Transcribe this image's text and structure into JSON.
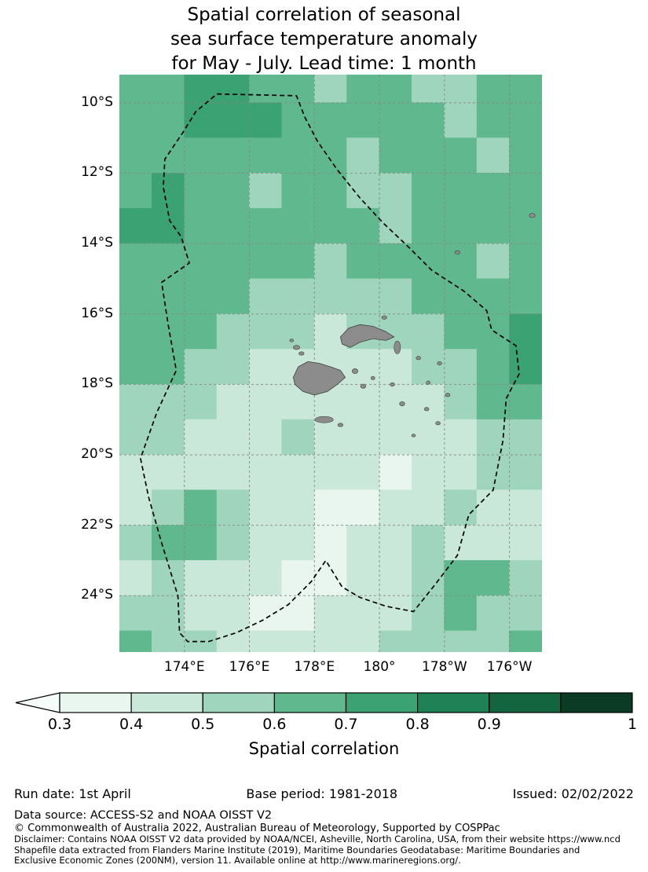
{
  "title": {
    "line1": "Spatial correlation of seasonal",
    "line2": "sea surface temperature anomaly",
    "line3": "for May - July. Lead time: 1 month"
  },
  "footer": {
    "run_date": "Run date: 1st April",
    "base_period": "Base period: 1981-2018",
    "issued": "Issued: 02/02/2022",
    "data_source": "Data source: ACCESS-S2 and NOAA OISST V2",
    "copyright": "© Commonwealth of Australia 2022, Australian Bureau of Meteorology, Supported by COSPPac",
    "disclaimer": [
      "Disclaimer: Contains NOAA OISST V2 data provided by NOAA/NCEI, Asheville, North Carolina, USA, from their website https://www.ncd",
      "Shapefile data extracted from Flanders Marine Institute (2019), Maritime Boundaries Geodatabase: Maritime Boundaries and",
      "Exclusive Economic Zones (200NM), version 11. Available online at http://www.marineregions.org/."
    ]
  },
  "chart_data": {
    "type": "heatmap",
    "title": "Spatial correlation of seasonal sea surface temperature anomaly for May - July. Lead time: 1 month",
    "season": "May - July",
    "lead_time": "1 month",
    "colorbar_label": "Spatial correlation",
    "levels": [
      0.3,
      0.4,
      0.5,
      0.6,
      0.7,
      0.8,
      0.9,
      0.95,
      1.0
    ],
    "below_color": "#f6fcf9",
    "colors": [
      "#e8f6ef",
      "#c9e8d9",
      "#a0d5bd",
      "#5fb88e",
      "#3aa273",
      "#1f8257",
      "#12653f",
      "#0b3b25"
    ],
    "colorbar": {
      "ticks": [
        {
          "pos": 0,
          "label": "0.3"
        },
        {
          "pos": 1,
          "label": "0.4"
        },
        {
          "pos": 2,
          "label": "0.5"
        },
        {
          "pos": 3,
          "label": "0.6"
        },
        {
          "pos": 4,
          "label": "0.7"
        },
        {
          "pos": 5,
          "label": "0.8"
        },
        {
          "pos": 6,
          "label": "0.9"
        },
        {
          "pos": 8,
          "label": "1"
        }
      ]
    },
    "map_extent": {
      "lon_min": 172,
      "lon_max": 185,
      "lat_min": -25.6,
      "lat_max": -9.2
    },
    "axis": {
      "x_ticks": [
        {
          "lon": 174,
          "label": "174°E"
        },
        {
          "lon": 176,
          "label": "176°E"
        },
        {
          "lon": 178,
          "label": "178°E"
        },
        {
          "lon": 180,
          "label": "180°"
        },
        {
          "lon": 182,
          "label": "178°W"
        },
        {
          "lon": 184,
          "label": "176°W"
        }
      ],
      "y_ticks": [
        {
          "lat": -10,
          "label": "10°S"
        },
        {
          "lat": -12,
          "label": "12°S"
        },
        {
          "lat": -14,
          "label": "14°S"
        },
        {
          "lat": -16,
          "label": "16°S"
        },
        {
          "lat": -18,
          "label": "18°S"
        },
        {
          "lat": -20,
          "label": "20°S"
        },
        {
          "lat": -22,
          "label": "22°S"
        },
        {
          "lat": -24,
          "label": "24°S"
        }
      ]
    },
    "grid": {
      "lon_start": 172,
      "dlon": 1,
      "lat_start": -9,
      "dlat": -1,
      "values": [
        [
          0.65,
          0.65,
          0.75,
          0.75,
          0.65,
          0.65,
          0.55,
          0.65,
          0.65,
          0.55,
          0.55,
          0.65,
          0.65
        ],
        [
          0.65,
          0.65,
          0.75,
          0.75,
          0.75,
          0.65,
          0.65,
          0.65,
          0.65,
          0.65,
          0.55,
          0.65,
          0.65
        ],
        [
          0.65,
          0.65,
          0.65,
          0.65,
          0.65,
          0.65,
          0.65,
          0.55,
          0.65,
          0.65,
          0.65,
          0.55,
          0.65
        ],
        [
          0.65,
          0.75,
          0.65,
          0.65,
          0.55,
          0.65,
          0.65,
          0.55,
          0.55,
          0.65,
          0.65,
          0.65,
          0.65
        ],
        [
          0.75,
          0.75,
          0.65,
          0.65,
          0.65,
          0.65,
          0.65,
          0.65,
          0.55,
          0.65,
          0.65,
          0.65,
          0.65
        ],
        [
          0.65,
          0.65,
          0.65,
          0.65,
          0.65,
          0.65,
          0.55,
          0.65,
          0.65,
          0.65,
          0.65,
          0.55,
          0.65
        ],
        [
          0.65,
          0.65,
          0.65,
          0.65,
          0.55,
          0.55,
          0.55,
          0.55,
          0.55,
          0.65,
          0.65,
          0.65,
          0.65
        ],
        [
          0.65,
          0.65,
          0.65,
          0.55,
          0.55,
          0.55,
          0.45,
          0.55,
          0.55,
          0.55,
          0.65,
          0.65,
          0.72
        ],
        [
          0.65,
          0.65,
          0.55,
          0.55,
          0.45,
          0.45,
          0.45,
          0.45,
          0.45,
          0.55,
          0.55,
          0.65,
          0.72
        ],
        [
          0.55,
          0.55,
          0.55,
          0.45,
          0.45,
          0.45,
          0.45,
          0.45,
          0.45,
          0.45,
          0.55,
          0.65,
          0.65
        ],
        [
          0.55,
          0.55,
          0.45,
          0.45,
          0.45,
          0.55,
          0.45,
          0.45,
          0.45,
          0.45,
          0.45,
          0.55,
          0.55
        ],
        [
          0.45,
          0.45,
          0.45,
          0.45,
          0.45,
          0.45,
          0.45,
          0.45,
          0.35,
          0.45,
          0.45,
          0.55,
          0.55
        ],
        [
          0.45,
          0.55,
          0.65,
          0.55,
          0.45,
          0.45,
          0.35,
          0.35,
          0.45,
          0.45,
          0.55,
          0.45,
          0.45
        ],
        [
          0.55,
          0.65,
          0.65,
          0.55,
          0.45,
          0.45,
          0.35,
          0.45,
          0.45,
          0.55,
          0.45,
          0.45,
          0.45
        ],
        [
          0.45,
          0.55,
          0.45,
          0.45,
          0.45,
          0.35,
          0.35,
          0.45,
          0.45,
          0.55,
          0.65,
          0.65,
          0.55
        ],
        [
          0.55,
          0.55,
          0.45,
          0.45,
          0.35,
          0.35,
          0.45,
          0.45,
          0.45,
          0.55,
          0.65,
          0.55,
          0.55
        ],
        [
          0.65,
          0.55,
          0.55,
          0.45,
          0.45,
          0.45,
          0.45,
          0.45,
          0.55,
          0.55,
          0.55,
          0.55,
          0.65
        ]
      ]
    },
    "eez_boundary": [
      [
        175.0,
        -9.75
      ],
      [
        177.45,
        -9.8
      ],
      [
        177.7,
        -10.4
      ],
      [
        178.1,
        -11.1
      ],
      [
        178.7,
        -11.9
      ],
      [
        179.4,
        -12.7
      ],
      [
        180.1,
        -13.4
      ],
      [
        180.9,
        -14.1
      ],
      [
        181.6,
        -14.75
      ],
      [
        182.6,
        -15.35
      ],
      [
        183.3,
        -15.9
      ],
      [
        183.45,
        -16.45
      ],
      [
        184.2,
        -16.9
      ],
      [
        184.3,
        -17.7
      ],
      [
        183.9,
        -18.4
      ],
      [
        183.8,
        -19.6
      ],
      [
        183.5,
        -21.0
      ],
      [
        182.75,
        -21.7
      ],
      [
        182.4,
        -22.85
      ],
      [
        181.7,
        -23.7
      ],
      [
        181.05,
        -24.45
      ],
      [
        180.2,
        -24.3
      ],
      [
        179.4,
        -24.05
      ],
      [
        178.85,
        -23.75
      ],
      [
        178.35,
        -23.0
      ],
      [
        177.9,
        -23.6
      ],
      [
        177.2,
        -24.25
      ],
      [
        176.4,
        -24.7
      ],
      [
        175.6,
        -25.05
      ],
      [
        174.75,
        -25.3
      ],
      [
        174.1,
        -25.3
      ],
      [
        173.85,
        -25.05
      ],
      [
        173.8,
        -24.0
      ],
      [
        173.3,
        -22.5
      ],
      [
        172.9,
        -21.2
      ],
      [
        172.65,
        -20.1
      ],
      [
        173.15,
        -18.8
      ],
      [
        173.75,
        -17.6
      ],
      [
        173.5,
        -16.3
      ],
      [
        173.3,
        -15.1
      ],
      [
        174.15,
        -14.55
      ],
      [
        173.9,
        -13.8
      ],
      [
        173.55,
        -13.35
      ],
      [
        173.35,
        -12.4
      ],
      [
        173.4,
        -11.6
      ],
      [
        173.95,
        -10.85
      ],
      [
        174.35,
        -10.25
      ],
      [
        175.0,
        -9.75
      ]
    ],
    "islands": {
      "fill": "#8c8c8c",
      "stroke": "#3f3f3f",
      "viti_levu": [
        [
          177.35,
          -17.8
        ],
        [
          177.5,
          -17.5
        ],
        [
          177.8,
          -17.35
        ],
        [
          178.15,
          -17.4
        ],
        [
          178.5,
          -17.5
        ],
        [
          178.8,
          -17.6
        ],
        [
          178.95,
          -17.8
        ],
        [
          178.7,
          -18.0
        ],
        [
          178.4,
          -18.2
        ],
        [
          178.0,
          -18.3
        ],
        [
          177.65,
          -18.2
        ],
        [
          177.4,
          -18.0
        ]
      ],
      "vanua_levu": [
        [
          178.8,
          -16.65
        ],
        [
          179.05,
          -16.4
        ],
        [
          179.4,
          -16.3
        ],
        [
          179.8,
          -16.35
        ],
        [
          180.2,
          -16.5
        ],
        [
          180.45,
          -16.65
        ],
        [
          180.2,
          -16.75
        ],
        [
          179.8,
          -16.7
        ],
        [
          179.4,
          -16.8
        ],
        [
          179.1,
          -16.95
        ],
        [
          178.85,
          -16.85
        ]
      ],
      "specks": [
        [
          180.55,
          -16.95,
          0.1,
          0.18
        ],
        [
          177.45,
          -16.95,
          0.1,
          0.06
        ],
        [
          177.6,
          -17.12,
          0.08,
          0.05
        ],
        [
          177.3,
          -16.75,
          0.06,
          0.04
        ],
        [
          179.25,
          -17.62,
          0.09,
          0.07
        ],
        [
          179.5,
          -18.05,
          0.08,
          0.06
        ],
        [
          179.8,
          -17.82,
          0.06,
          0.05
        ],
        [
          178.3,
          -19.0,
          0.28,
          0.09
        ],
        [
          178.8,
          -19.15,
          0.08,
          0.05
        ],
        [
          180.4,
          -18.0,
          0.07,
          0.05
        ],
        [
          180.7,
          -18.55,
          0.08,
          0.06
        ],
        [
          181.2,
          -17.25,
          0.07,
          0.05
        ],
        [
          181.85,
          -17.4,
          0.07,
          0.05
        ],
        [
          181.5,
          -17.95,
          0.06,
          0.05
        ],
        [
          182.1,
          -18.3,
          0.07,
          0.05
        ],
        [
          181.45,
          -18.7,
          0.07,
          0.05
        ],
        [
          181.8,
          -19.1,
          0.07,
          0.05
        ],
        [
          181.05,
          -19.45,
          0.06,
          0.04
        ],
        [
          180.15,
          -16.1,
          0.08,
          0.05
        ],
        [
          182.4,
          -14.25,
          0.08,
          0.05
        ],
        [
          184.7,
          -13.2,
          0.09,
          0.06
        ]
      ]
    }
  }
}
